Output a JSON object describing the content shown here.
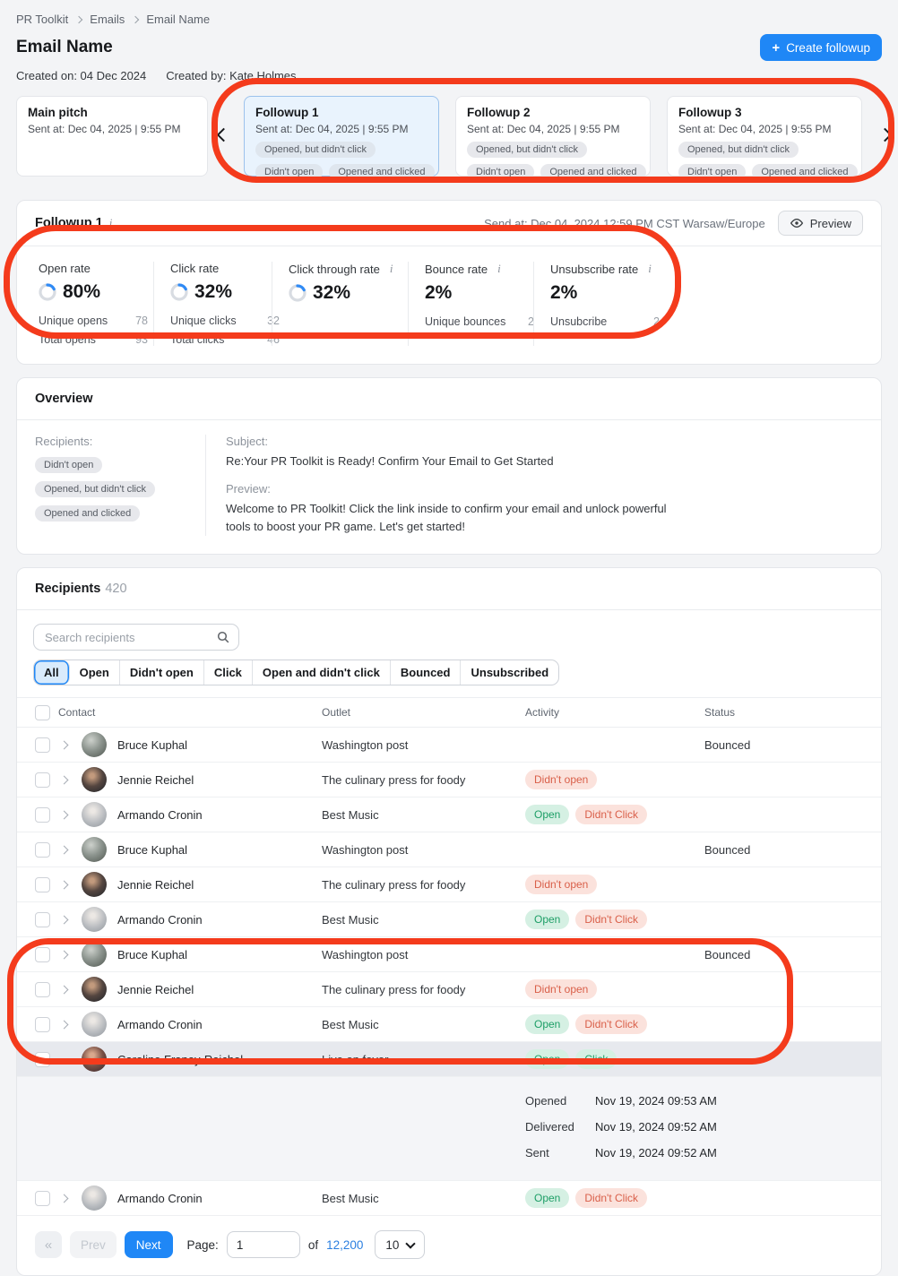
{
  "breadcrumb": {
    "items": [
      "PR Toolkit",
      "Emails",
      "Email Name"
    ]
  },
  "header": {
    "title": "Email Name",
    "created_on": "Created on: 04 Dec 2024",
    "created_by": "Created by: Kate Holmes",
    "create_followup": {
      "plus": "+",
      "label": "Create followup"
    }
  },
  "carousel": {
    "cards": [
      {
        "title": "Main pitch",
        "sent": "Sent at: Dec 04, 2025 | 9:55 PM",
        "tags": [],
        "selected": false
      },
      {
        "title": "Followup 1",
        "sent": "Sent at: Dec 04, 2025 | 9:55 PM",
        "tags": [
          [
            "Opened, but didn't click"
          ],
          [
            "Didn't open",
            "Opened and clicked"
          ]
        ],
        "selected": true
      },
      {
        "title": "Followup 2",
        "sent": "Sent at: Dec 04, 2025 | 9:55 PM",
        "tags": [
          [
            "Opened, but didn't click"
          ],
          [
            "Didn't open",
            "Opened and clicked"
          ]
        ],
        "selected": false
      },
      {
        "title": "Followup 3",
        "sent": "Sent at: Dec 04, 2025 | 9:55 PM",
        "tags": [
          [
            "Opened, but didn't click"
          ],
          [
            "Didn't open",
            "Opened and clicked"
          ]
        ],
        "selected": false
      }
    ]
  },
  "followup_panel": {
    "title": "Followup 1",
    "info_icon": "i",
    "send_at": "Send at: Dec 04, 2024 12:59 PM CST Warsaw/Europe",
    "preview_label": "Preview",
    "stats": [
      {
        "label": "Open rate",
        "info": false,
        "donut": true,
        "value": "80%",
        "subs": [
          {
            "k": "Unique opens",
            "v": "78"
          },
          {
            "k": "Total opens",
            "v": "93"
          }
        ]
      },
      {
        "label": "Click rate",
        "info": false,
        "donut": true,
        "value": "32%",
        "subs": [
          {
            "k": "Unique clicks",
            "v": "32"
          },
          {
            "k": "Total clicks",
            "v": "46"
          }
        ]
      },
      {
        "label": "Click through rate",
        "info": true,
        "donut": true,
        "value": "32%",
        "subs": []
      },
      {
        "label": "Bounce rate",
        "info": true,
        "donut": false,
        "value": "2%",
        "subs": [
          {
            "k": "Unique bounces",
            "v": "2"
          }
        ]
      },
      {
        "label": "Unsubscribe rate",
        "info": true,
        "donut": false,
        "value": "2%",
        "subs": [
          {
            "k": "Unsubcribe",
            "v": "2"
          }
        ]
      }
    ]
  },
  "overview": {
    "title": "Overview",
    "recipients_label": "Recipients:",
    "recipient_tags": [
      "Didn't open",
      "Opened, but didn't click",
      "Opened and clicked"
    ],
    "subject_label": "Subject:",
    "subject": "Re:Your PR Toolkit is Ready! Confirm Your Email to Get Started",
    "preview_label": "Preview:",
    "preview_text": "Welcome to PR Toolkit! Click the link inside to confirm your email and unlock powerful tools to boost your PR game. Let's get started!"
  },
  "recipients": {
    "title": "Recipients",
    "count": "420",
    "search_placeholder": "Search recipients",
    "filters": [
      {
        "label": "All",
        "active": true
      },
      {
        "label": "Open",
        "active": false
      },
      {
        "label": "Didn't open",
        "active": false
      },
      {
        "label": "Click",
        "active": false
      },
      {
        "label": "Open and didn't click",
        "active": false
      },
      {
        "label": "Bounced",
        "active": false
      },
      {
        "label": "Unsubscribed",
        "active": false
      }
    ],
    "table": {
      "columns": [
        "Contact",
        "Outlet",
        "Activity",
        "Status"
      ],
      "rows": [
        {
          "name": "Bruce Kuphal",
          "avatar": "bruce",
          "outlet": "Washington post",
          "activity": [],
          "status": "Bounced",
          "expanded": false
        },
        {
          "name": "Jennie Reichel",
          "avatar": "jennie",
          "outlet": "The culinary press for foody",
          "activity": [
            {
              "label": "Didn't open",
              "type": "red"
            }
          ],
          "status": "",
          "expanded": false
        },
        {
          "name": "Armando Cronin",
          "avatar": "armando",
          "outlet": "Best Music",
          "activity": [
            {
              "label": "Open",
              "type": "green"
            },
            {
              "label": "Didn't Click",
              "type": "red"
            }
          ],
          "status": "",
          "expanded": false
        },
        {
          "name": "Bruce Kuphal",
          "avatar": "bruce",
          "outlet": "Washington post",
          "activity": [],
          "status": "Bounced",
          "expanded": false
        },
        {
          "name": "Jennie Reichel",
          "avatar": "jennie",
          "outlet": "The culinary press for foody",
          "activity": [
            {
              "label": "Didn't open",
              "type": "red"
            }
          ],
          "status": "",
          "expanded": false
        },
        {
          "name": "Armando Cronin",
          "avatar": "armando",
          "outlet": "Best Music",
          "activity": [
            {
              "label": "Open",
              "type": "green"
            },
            {
              "label": "Didn't Click",
              "type": "red"
            }
          ],
          "status": "",
          "expanded": false
        },
        {
          "name": "Bruce Kuphal",
          "avatar": "bruce",
          "outlet": "Washington post",
          "activity": [],
          "status": "Bounced",
          "expanded": false
        },
        {
          "name": "Jennie Reichel",
          "avatar": "jennie",
          "outlet": "The culinary press for foody",
          "activity": [
            {
              "label": "Didn't open",
              "type": "red"
            }
          ],
          "status": "",
          "expanded": false
        },
        {
          "name": "Armando Cronin",
          "avatar": "armando",
          "outlet": "Best Music",
          "activity": [
            {
              "label": "Open",
              "type": "green"
            },
            {
              "label": "Didn't Click",
              "type": "red"
            }
          ],
          "status": "",
          "expanded": false
        },
        {
          "name": "Caroline Franey-Reichel",
          "avatar": "caroline",
          "outlet": "Live on fever",
          "activity": [
            {
              "label": "Open",
              "type": "green"
            },
            {
              "label": "Click",
              "type": "green"
            }
          ],
          "status": "",
          "expanded": true,
          "details": [
            {
              "label": "Opened",
              "value": "Nov 19, 2024 09:53 AM"
            },
            {
              "label": "Delivered",
              "value": "Nov 19, 2024 09:52 AM"
            },
            {
              "label": "Sent",
              "value": "Nov 19, 2024 09:52 AM"
            }
          ]
        },
        {
          "name": "Armando Cronin",
          "avatar": "armando",
          "outlet": "Best Music",
          "activity": [
            {
              "label": "Open",
              "type": "green"
            },
            {
              "label": "Didn't Click",
              "type": "red"
            }
          ],
          "status": "",
          "expanded": false
        }
      ]
    },
    "pagination": {
      "first_icon": "«",
      "prev_label": "Prev",
      "next_label": "Next",
      "page_label": "Page:",
      "page_value": "1",
      "of_label": "of",
      "total_pages": "12,200",
      "page_size": "10"
    }
  },
  "colors": {
    "accent": "#1f87f6",
    "annotation": "#f43b1c",
    "selected_card_bg": "#e9f3fd",
    "pill_green_bg": "#d5f0e3",
    "pill_green_text": "#1d9e66",
    "pill_red_bg": "#fbe2dc",
    "pill_red_text": "#d95f49"
  }
}
